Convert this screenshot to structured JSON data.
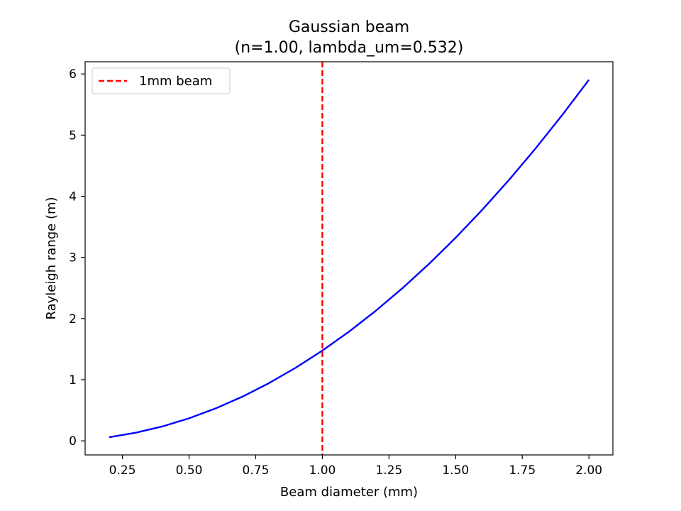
{
  "chart_data": {
    "type": "line",
    "title": "Gaussian beam",
    "subtitle": "(n=1.00, lambda_um=0.532)",
    "xlabel": "Beam diameter (mm)",
    "ylabel": "Rayleigh range (m)",
    "xlim": [
      0.11,
      2.09
    ],
    "ylim": [
      -0.23,
      6.2
    ],
    "xticks": [
      0.25,
      0.5,
      0.75,
      1.0,
      1.25,
      1.5,
      1.75,
      2.0
    ],
    "xtick_labels": [
      "0.25",
      "0.50",
      "0.75",
      "1.00",
      "1.25",
      "1.50",
      "1.75",
      "2.00"
    ],
    "yticks": [
      0,
      1,
      2,
      3,
      4,
      5,
      6
    ],
    "ytick_labels": [
      "0",
      "1",
      "2",
      "3",
      "4",
      "5",
      "6"
    ],
    "grid": false,
    "legend": {
      "placement": "top-left",
      "entries": [
        "1mm beam"
      ]
    },
    "series": [
      {
        "color": "#0000ff",
        "style": "solid",
        "x": [
          0.2,
          0.3,
          0.4,
          0.5,
          0.6,
          0.7,
          0.8,
          0.9,
          1.0,
          1.1,
          1.2,
          1.3,
          1.4,
          1.5,
          1.6,
          1.7,
          1.8,
          1.9,
          2.0
        ],
        "y": [
          0.059,
          0.133,
          0.236,
          0.369,
          0.531,
          0.723,
          0.945,
          1.196,
          1.476,
          1.786,
          2.126,
          2.495,
          2.894,
          3.322,
          3.779,
          4.266,
          4.783,
          5.329,
          5.905
        ]
      }
    ],
    "vlines": [
      {
        "x": 1.0,
        "name": "1mm beam",
        "color": "#ff0000",
        "style": "dashed"
      }
    ]
  }
}
